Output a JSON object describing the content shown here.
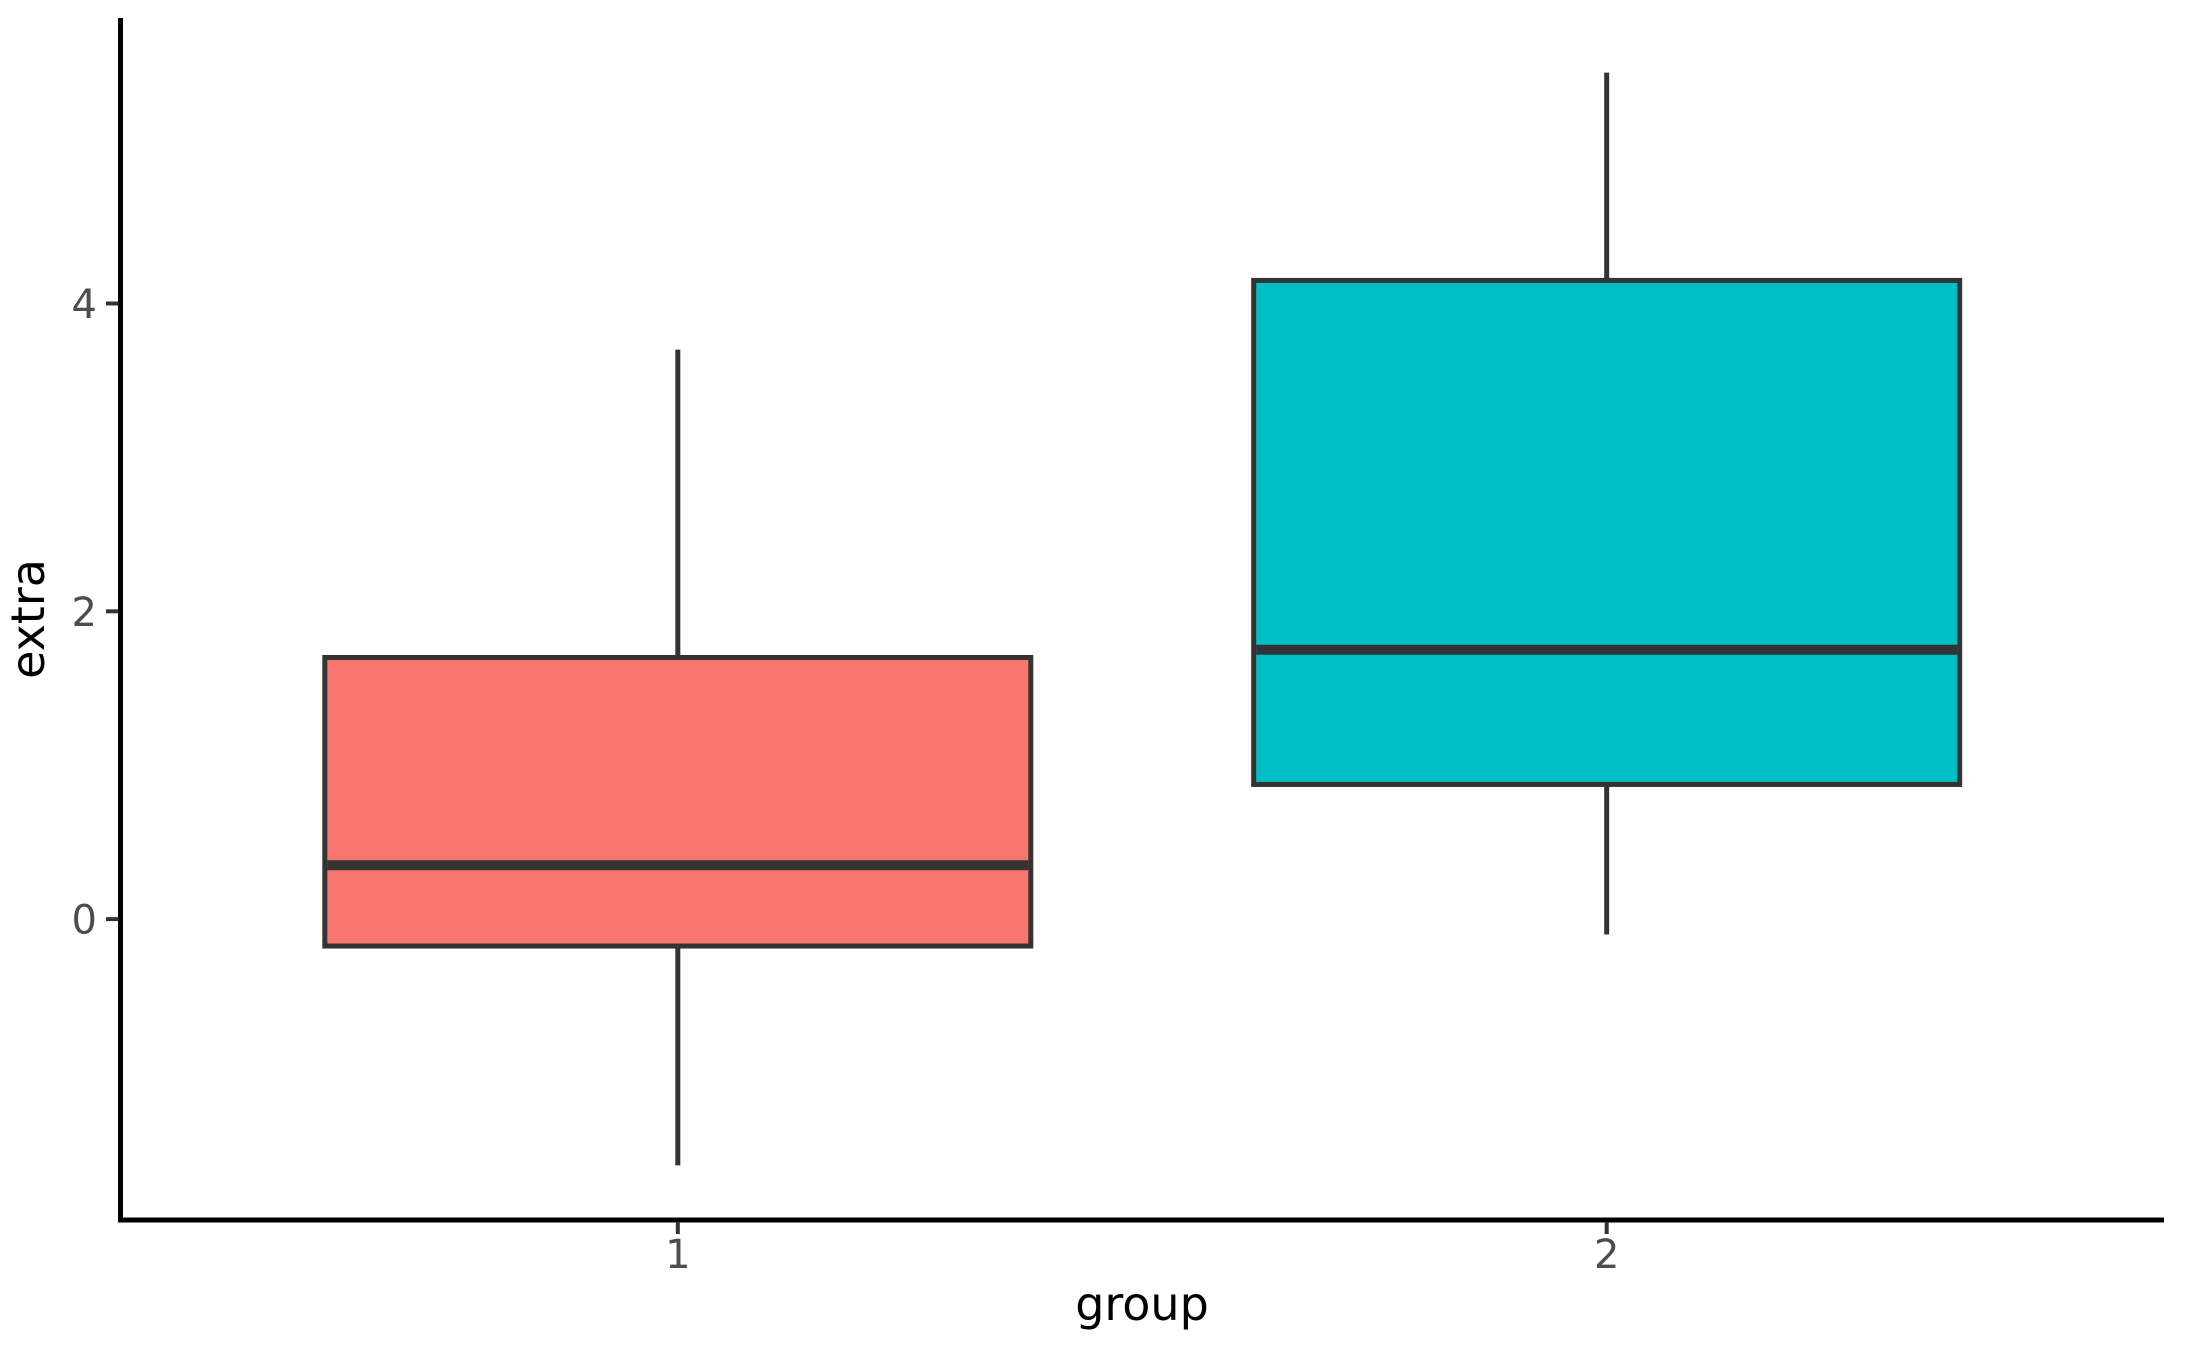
{
  "chart_data": {
    "type": "boxplot",
    "title": "",
    "xlabel": "group",
    "ylabel": "extra",
    "categories": [
      "1",
      "2"
    ],
    "series": [
      {
        "name": "1",
        "fill": "#F8766D",
        "whisker_min": -1.6,
        "q1": -0.175,
        "median": 0.35,
        "q3": 1.7,
        "whisker_max": 3.7
      },
      {
        "name": "2",
        "fill": "#00BFC4",
        "whisker_min": -0.1,
        "q1": 0.875,
        "median": 1.75,
        "q3": 4.15,
        "whisker_max": 5.5
      }
    ],
    "y_tick_labels": [
      "0",
      "2",
      "4"
    ],
    "y_tick_values": [
      0,
      2,
      4
    ],
    "ylim": [
      -1.955,
      5.855
    ],
    "grid": false,
    "legend": "none",
    "outliers": []
  },
  "style": {
    "background": "#FFFFFF",
    "box_line_color": "#333333",
    "median_color": "#333333",
    "whisker_color": "#333333",
    "axis_line_color": "#000000",
    "tick_mark_color": "#333333",
    "tick_label_color": "#4D4D4D",
    "axis_title_color": "#000000"
  }
}
